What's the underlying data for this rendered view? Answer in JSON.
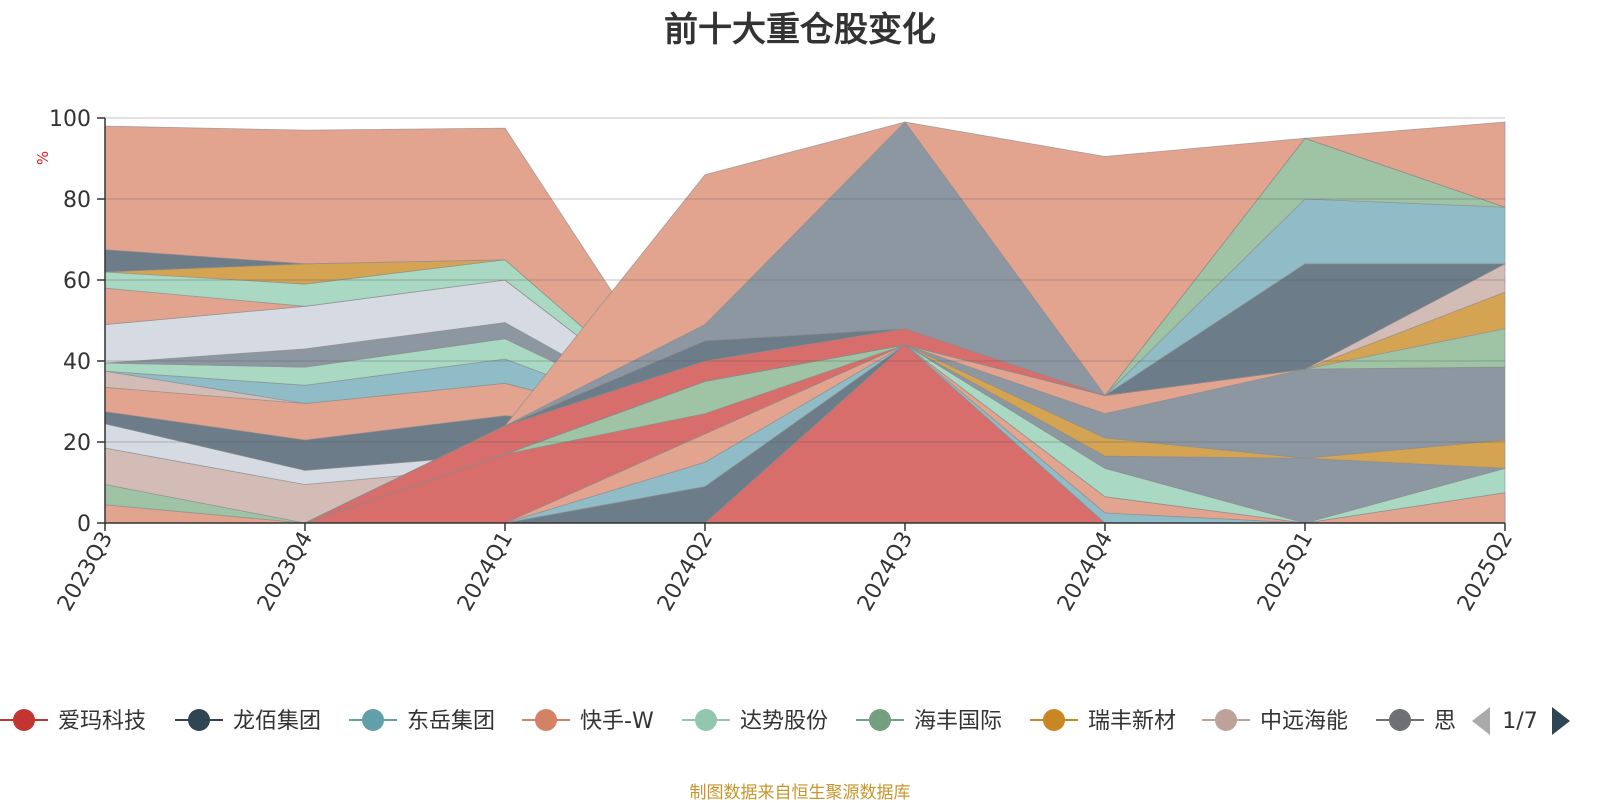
{
  "chart_data": {
    "type": "area",
    "title": "前十大重仓股变化",
    "ylabel": "%",
    "ylim": [
      0,
      100
    ],
    "yticks": [
      0,
      20,
      40,
      60,
      80,
      100
    ],
    "categories": [
      "2023Q3",
      "2023Q4",
      "2024Q1",
      "2024Q2",
      "2024Q3",
      "2024Q4",
      "2025Q1",
      "2025Q2"
    ],
    "grid": true,
    "legend_position": "bottom",
    "stack_base": [
      0,
      0,
      0,
      0,
      0,
      0,
      0,
      0
    ],
    "series": [
      {
        "color": "#e2a48f",
        "values": [
          4.5,
          0,
          4,
          22,
          44,
          7,
          0,
          7.5
        ]
      },
      {
        "color": "#9ec3a5",
        "values": [
          5,
          0,
          0,
          0,
          0,
          0,
          0,
          0
        ]
      },
      {
        "color": "#d3bcb5",
        "values": [
          9,
          9.5,
          10,
          0,
          0,
          0,
          0,
          0
        ]
      },
      {
        "color": "#d6dbe3",
        "values": [
          6,
          3.5,
          3,
          0,
          0,
          0,
          0,
          0
        ]
      },
      {
        "color": "#6d7c89",
        "values": [
          3,
          7.5,
          9.5,
          0,
          0,
          0,
          0,
          0
        ]
      },
      {
        "color": "#e2a48f",
        "values": [
          6,
          9,
          8,
          0,
          0,
          0,
          0,
          0
        ]
      },
      {
        "color": "#d3bcb5",
        "values": [
          4,
          0,
          0,
          0,
          0,
          0,
          0,
          0
        ]
      },
      {
        "color": "#8fbcc6",
        "values": [
          0,
          4.5,
          6,
          0,
          0,
          0,
          0,
          0
        ]
      },
      {
        "color": "#a9d8c3",
        "values": [
          2,
          4.5,
          5,
          0,
          0,
          0,
          0,
          0
        ]
      },
      {
        "color": "#8c97a2",
        "values": [
          0,
          4.5,
          4,
          0,
          0,
          0,
          0,
          0
        ]
      },
      {
        "color": "#d6dbe3",
        "values": [
          9.5,
          10.5,
          10.5,
          0,
          0,
          0,
          0,
          0
        ]
      },
      {
        "color": "#e2a48f",
        "values": [
          9,
          0,
          0,
          0,
          0,
          0,
          0,
          0
        ]
      },
      {
        "color": "#a9d8c3",
        "values": [
          4,
          5.5,
          5,
          0,
          0,
          0,
          0,
          0
        ]
      },
      {
        "color": "#d5a453",
        "values": [
          0,
          5,
          0,
          0,
          0,
          0,
          0,
          0
        ]
      },
      {
        "color": "#6d7c89",
        "values": [
          5.5,
          0,
          0,
          0,
          0,
          0,
          0,
          0
        ]
      },
      {
        "color": "#e2a48f",
        "values": [
          30.5,
          33,
          32.5,
          0,
          0,
          0,
          0,
          0
        ]
      }
    ],
    "series_overlay": [
      {
        "color": "#d76e6b",
        "values": [
          0,
          0,
          0,
          0,
          44,
          0,
          0,
          0
        ]
      },
      {
        "color": "#6d7c89",
        "values": [
          0,
          0,
          0,
          9,
          0,
          0,
          0,
          0
        ]
      },
      {
        "color": "#8fbcc6",
        "values": [
          0,
          0,
          0,
          6,
          0,
          2.5,
          0,
          0
        ]
      },
      {
        "color": "#e2a48f",
        "values": [
          0,
          0,
          0,
          7,
          0,
          4,
          0,
          7.5
        ]
      },
      {
        "color": "#d76e6b",
        "values": [
          0,
          0,
          17,
          5,
          0,
          0,
          0,
          0
        ]
      },
      {
        "color": "#9ec3a5",
        "values": [
          0,
          0,
          0,
          8,
          0,
          0,
          0,
          0
        ]
      },
      {
        "color": "#a9d8c3",
        "values": [
          0,
          0,
          0,
          0,
          0,
          7,
          0,
          6
        ]
      },
      {
        "color": "#8c97a2",
        "values": [
          0,
          0,
          0,
          0,
          0,
          3,
          16,
          0
        ]
      },
      {
        "color": "#d5a453",
        "values": [
          0,
          0,
          0,
          0,
          0,
          4.5,
          0,
          7
        ]
      },
      {
        "color": "#8c97a2",
        "values": [
          0,
          0,
          0,
          0,
          0,
          6,
          22,
          18
        ]
      },
      {
        "color": "#e2a48f",
        "values": [
          0,
          0,
          0,
          0,
          0,
          4.5,
          0,
          0
        ]
      },
      {
        "color": "#9ec3a5",
        "values": [
          0,
          0,
          0,
          0,
          0,
          0,
          0,
          9.5
        ]
      },
      {
        "color": "#d5a453",
        "values": [
          0,
          0,
          0,
          0,
          0,
          0,
          0,
          9
        ]
      },
      {
        "color": "#d3bcb5",
        "values": [
          0,
          0,
          0,
          0,
          0,
          0,
          0,
          7
        ]
      },
      {
        "color": "#6d7c89",
        "values": [
          0,
          0,
          0,
          0,
          0,
          0,
          26,
          0
        ]
      },
      {
        "color": "#8fbcc6",
        "values": [
          0,
          0,
          0,
          0,
          0,
          0,
          16,
          14
        ]
      },
      {
        "color": "#9ec3a5",
        "values": [
          0,
          0,
          0,
          0,
          0,
          0,
          15,
          0
        ]
      },
      {
        "color": "#d76e6b",
        "values": [
          0,
          0,
          7,
          5,
          4,
          0,
          0,
          0
        ]
      },
      {
        "color": "#6d7c89",
        "values": [
          0,
          0,
          0,
          5,
          0,
          0,
          0,
          0
        ]
      },
      {
        "color": "#8c97a2",
        "values": [
          0,
          0,
          0,
          4,
          51,
          0,
          0,
          0
        ]
      },
      {
        "color": "#e2a48f",
        "values": [
          0,
          0,
          0,
          37,
          0,
          59,
          0,
          21
        ]
      }
    ],
    "legend": {
      "items": [
        {
          "label": "爱玛科技",
          "color": "#c23531"
        },
        {
          "label": "龙佰集团",
          "color": "#2f4554"
        },
        {
          "label": "东岳集团",
          "color": "#61a0a8"
        },
        {
          "label": "快手-W",
          "color": "#d48265"
        },
        {
          "label": "达势股份",
          "color": "#91c7ae"
        },
        {
          "label": "海丰国际",
          "color": "#749f83"
        },
        {
          "label": "瑞丰新材",
          "color": "#ca8622"
        },
        {
          "label": "中远海能",
          "color": "#bda29a"
        },
        {
          "label": "思",
          "color": "#6e7074"
        }
      ],
      "page": "1/7"
    },
    "source": "制图数据来自恒生聚源数据库"
  }
}
